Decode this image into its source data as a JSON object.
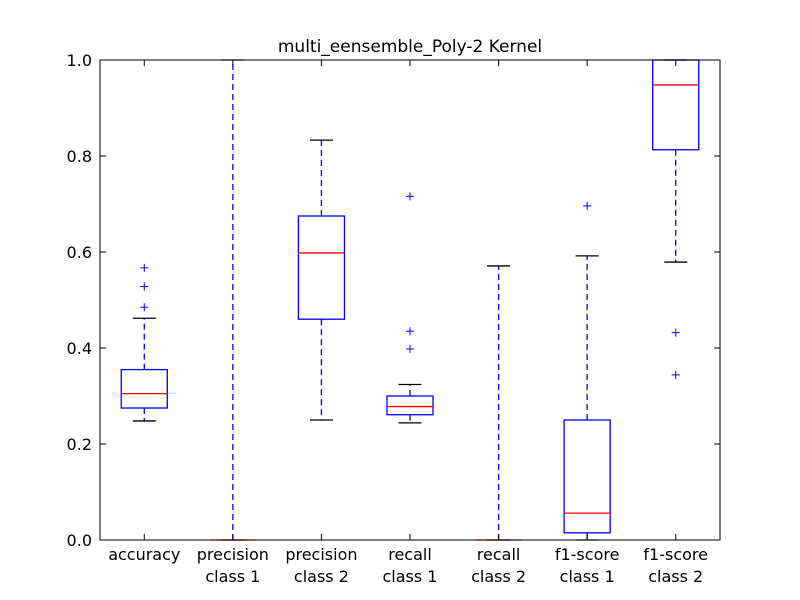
{
  "chart_data": {
    "type": "box",
    "title": "multi_eensemble_Poly-2 Kernel",
    "xlabel": "",
    "ylabel": "",
    "ylim": [
      0.0,
      1.0
    ],
    "y_ticks": [
      0.0,
      0.2,
      0.4,
      0.6,
      0.8,
      1.0
    ],
    "y_tick_labels": [
      "0.0",
      "0.2",
      "0.4",
      "0.6",
      "0.8",
      "1.0"
    ],
    "grid": false,
    "colors": {
      "box": "#0000ff",
      "median": "#ff0000",
      "whisker": "#0000ff",
      "cap": "#000000",
      "flier": "#0000ff"
    },
    "categories": [
      [
        "accuracy"
      ],
      [
        "precision",
        "class 1"
      ],
      [
        "precision",
        "class 2"
      ],
      [
        "recall",
        "class 1"
      ],
      [
        "recall",
        "class 2"
      ],
      [
        "f1-score",
        "class 1"
      ],
      [
        "f1-score",
        "class 2"
      ]
    ],
    "boxes": [
      {
        "whislo": 0.248,
        "q1": 0.275,
        "med": 0.305,
        "q3": 0.355,
        "whishi": 0.462,
        "fliers": [
          0.485,
          0.528,
          0.567
        ]
      },
      {
        "whislo": 0.0,
        "q1": 0.0,
        "med": 0.0,
        "q3": 0.0,
        "whishi": 1.0,
        "fliers": []
      },
      {
        "whislo": 0.25,
        "q1": 0.46,
        "med": 0.598,
        "q3": 0.675,
        "whishi": 0.833,
        "fliers": []
      },
      {
        "whislo": 0.244,
        "q1": 0.261,
        "med": 0.278,
        "q3": 0.3,
        "whishi": 0.324,
        "fliers": [
          0.398,
          0.435,
          0.716
        ]
      },
      {
        "whislo": 0.0,
        "q1": 0.0,
        "med": 0.0,
        "q3": 0.0,
        "whishi": 0.571,
        "fliers": []
      },
      {
        "whislo": 0.0,
        "q1": 0.015,
        "med": 0.056,
        "q3": 0.25,
        "whishi": 0.592,
        "fliers": [
          0.696
        ]
      },
      {
        "whislo": 0.579,
        "q1": 0.813,
        "med": 0.948,
        "q3": 1.0,
        "whishi": 1.0,
        "fliers": [
          0.344,
          0.432
        ]
      }
    ]
  }
}
